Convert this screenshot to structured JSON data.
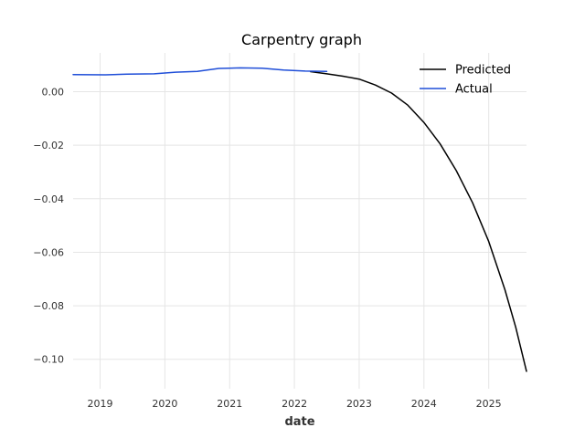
{
  "chart_data": {
    "type": "line",
    "title": "Carpentry graph",
    "xlabel": "date",
    "ylabel": "",
    "x_ticks": [
      "2019",
      "2020",
      "2021",
      "2022",
      "2023",
      "2024",
      "2025"
    ],
    "y_ticks": [
      "0.00",
      "−0.02",
      "−0.04",
      "−0.06",
      "−0.08",
      "−0.10"
    ],
    "xlim": [
      "2018-08-01",
      "2025-08-01"
    ],
    "ylim": [
      -0.111,
      0.0145
    ],
    "grid": true,
    "legend_position": "top-right",
    "series": [
      {
        "name": "Predicted",
        "color": "#000000",
        "points": [
          [
            "2022-04-01",
            0.0075
          ],
          [
            "2022-07-01",
            0.0067
          ],
          [
            "2022-10-01",
            0.0058
          ],
          [
            "2023-01-01",
            0.0047
          ],
          [
            "2023-04-01",
            0.0025
          ],
          [
            "2023-07-01",
            -0.0005
          ],
          [
            "2023-10-01",
            -0.005
          ],
          [
            "2024-01-01",
            -0.0115
          ],
          [
            "2024-04-01",
            -0.0195
          ],
          [
            "2024-07-01",
            -0.0295
          ],
          [
            "2024-10-01",
            -0.0415
          ],
          [
            "2025-01-01",
            -0.056
          ],
          [
            "2025-04-01",
            -0.074
          ],
          [
            "2025-06-01",
            -0.088
          ],
          [
            "2025-08-01",
            -0.1045
          ]
        ]
      },
      {
        "name": "Actual",
        "color": "#1f4ed8",
        "points": [
          [
            "2018-08-01",
            0.0064
          ],
          [
            "2019-02-01",
            0.0063
          ],
          [
            "2019-06-01",
            0.0066
          ],
          [
            "2019-11-01",
            0.0067
          ],
          [
            "2020-03-01",
            0.0073
          ],
          [
            "2020-07-01",
            0.0076
          ],
          [
            "2020-11-01",
            0.0087
          ],
          [
            "2021-03-01",
            0.0089
          ],
          [
            "2021-07-01",
            0.0088
          ],
          [
            "2021-11-01",
            0.0081
          ],
          [
            "2022-03-01",
            0.0077
          ],
          [
            "2022-07-01",
            0.0076
          ]
        ]
      }
    ]
  }
}
